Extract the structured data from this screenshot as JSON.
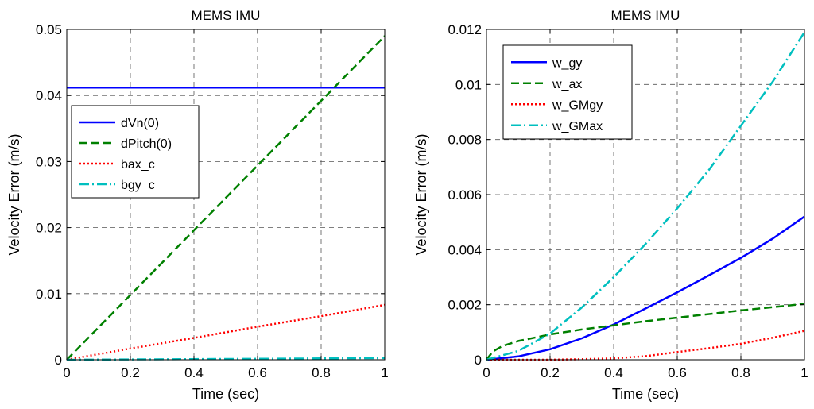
{
  "chart_data": [
    {
      "type": "line",
      "title": "MEMS IMU",
      "xlabel": "Time (sec)",
      "ylabel": "Velocity Error (m/s)",
      "xlim": [
        0,
        1
      ],
      "ylim": [
        0,
        0.05
      ],
      "xticks": [
        0,
        0.2,
        0.4,
        0.6,
        0.8,
        1
      ],
      "xtick_labels": [
        "0",
        "0.2",
        "0.4",
        "0.6",
        "0.8",
        "1"
      ],
      "yticks": [
        0,
        0.01,
        0.02,
        0.03,
        0.04,
        0.05
      ],
      "ytick_labels": [
        "0",
        "0.01",
        "0.02",
        "0.03",
        "0.04",
        "0.05"
      ],
      "grid": true,
      "legend_position": "middle-left",
      "series": [
        {
          "name": "dVn(0)",
          "color": "#0000ff",
          "dash": "solid",
          "x": [
            0,
            1
          ],
          "y": [
            0.0412,
            0.0412
          ]
        },
        {
          "name": "dPitch(0)",
          "color": "#008000",
          "dash": "dashed",
          "x": [
            0,
            0.2,
            0.4,
            0.6,
            0.8,
            1
          ],
          "y": [
            0,
            0.0098,
            0.0196,
            0.0294,
            0.0392,
            0.049
          ]
        },
        {
          "name": "bax_c",
          "color": "#ff0000",
          "dash": "dotted",
          "x": [
            0,
            0.2,
            0.4,
            0.6,
            0.8,
            1
          ],
          "y": [
            0,
            0.0017,
            0.0033,
            0.005,
            0.0066,
            0.0083
          ]
        },
        {
          "name": "bgy_c",
          "color": "#00bfbf",
          "dash": "dashdot",
          "x": [
            0,
            0.2,
            0.4,
            0.6,
            0.8,
            1
          ],
          "y": [
            0,
            5e-05,
            0.0001,
            0.00015,
            0.0002,
            0.00025
          ]
        }
      ]
    },
    {
      "type": "line",
      "title": "MEMS IMU",
      "xlabel": "Time (sec)",
      "ylabel": "Velocity Error (m/s)",
      "xlim": [
        0,
        1
      ],
      "ylim": [
        0,
        0.012
      ],
      "xticks": [
        0,
        0.2,
        0.4,
        0.6,
        0.8,
        1
      ],
      "xtick_labels": [
        "0",
        "0.2",
        "0.4",
        "0.6",
        "0.8",
        "1"
      ],
      "yticks": [
        0,
        0.002,
        0.004,
        0.006,
        0.008,
        0.01,
        0.012
      ],
      "ytick_labels": [
        "0",
        "0.002",
        "0.004",
        "0.006",
        "0.008",
        "0.01",
        "0.012"
      ],
      "grid": true,
      "legend_position": "top-left",
      "series": [
        {
          "name": "w_gy",
          "color": "#0000ff",
          "dash": "solid",
          "x": [
            0,
            0.1,
            0.2,
            0.3,
            0.4,
            0.5,
            0.6,
            0.7,
            0.8,
            0.9,
            1
          ],
          "y": [
            0,
            0.00012,
            0.00038,
            0.00078,
            0.00128,
            0.00186,
            0.00245,
            0.00307,
            0.0037,
            0.0044,
            0.0052
          ]
        },
        {
          "name": "w_ax",
          "color": "#008000",
          "dash": "dashed",
          "x": [
            0,
            0.02,
            0.05,
            0.1,
            0.15,
            0.2,
            0.3,
            0.4,
            0.5,
            0.6,
            0.7,
            0.8,
            0.9,
            1
          ],
          "y": [
            0,
            0.0003,
            0.0005,
            0.00068,
            0.0008,
            0.00092,
            0.0011,
            0.00125,
            0.0014,
            0.00153,
            0.00166,
            0.00179,
            0.00191,
            0.00203
          ]
        },
        {
          "name": "w_GMgy",
          "color": "#ff0000",
          "dash": "dotted",
          "x": [
            0,
            0.1,
            0.2,
            0.3,
            0.4,
            0.5,
            0.6,
            0.7,
            0.8,
            0.9,
            1
          ],
          "y": [
            0,
            0,
            0,
            2e-05,
            5e-05,
            0.00013,
            0.00028,
            0.00042,
            0.00058,
            0.0008,
            0.00105
          ]
        },
        {
          "name": "w_GMax",
          "color": "#00bfbf",
          "dash": "dashdot",
          "x": [
            0,
            0.1,
            0.2,
            0.3,
            0.4,
            0.5,
            0.6,
            0.7,
            0.8,
            0.9,
            1
          ],
          "y": [
            0,
            0.00032,
            0.00095,
            0.0019,
            0.003,
            0.0042,
            0.0055,
            0.0069,
            0.0085,
            0.0101,
            0.0119
          ]
        }
      ]
    }
  ]
}
